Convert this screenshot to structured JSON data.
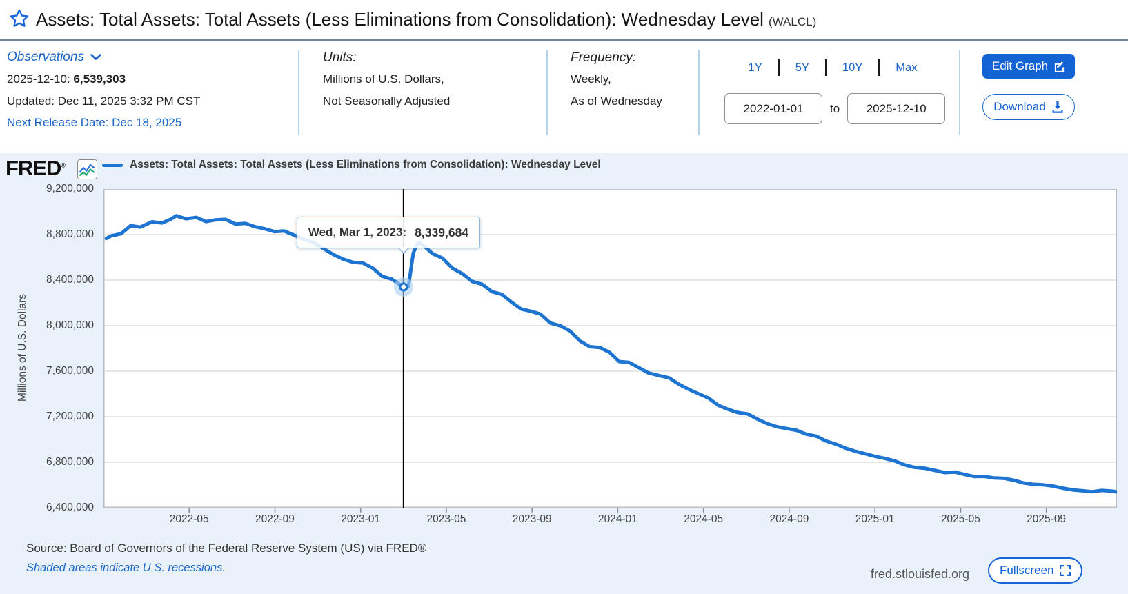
{
  "page": {
    "title": "Assets: Total Assets: Total Assets (Less Eliminations from Consolidation): Wednesday Level",
    "ticker": "(WALCL)"
  },
  "meta": {
    "observations": {
      "label": "Observations",
      "latest_date": "2025-12-10:",
      "latest_value": "6,539,303",
      "updated": "Updated: Dec 11, 2025 3:32 PM CST",
      "next_release": "Next Release Date: Dec 18, 2025"
    },
    "units": {
      "label": "Units:",
      "line1": "Millions of U.S. Dollars,",
      "line2": "Not Seasonally Adjusted"
    },
    "frequency": {
      "label": "Frequency:",
      "line1": "Weekly,",
      "line2": "As of Wednesday"
    },
    "range": {
      "presets": [
        "1Y",
        "5Y",
        "10Y",
        "Max"
      ],
      "start": "2022-01-01",
      "to_label": "to",
      "end": "2025-12-10"
    },
    "actions": {
      "edit": "Edit Graph",
      "download": "Download"
    }
  },
  "chart": {
    "logo": "FRED",
    "legend": "Assets: Total Assets: Total Assets (Less Eliminations from Consolidation): Wednesday Level",
    "tooltip": {
      "label": "Wed, Mar 1, 2023:",
      "value": "8,339,684"
    }
  },
  "footer": {
    "source": "Source: Board of Governors of the Federal Reserve System (US) via FRED®",
    "recessions": "Shaded areas indicate U.S. recessions.",
    "site": "fred.stlouisfed.org",
    "fullscreen": "Fullscreen"
  },
  "colors": {
    "link_blue": "#1a66c8",
    "button_blue": "#1463d2",
    "line_blue": "#1d74d1",
    "chart_bg": "#e9f1fa",
    "grid": "#cccccc",
    "plot_border": "#b4bac1",
    "crosshair": "#000000",
    "halo": "#a8cdf0",
    "tick": "#8a9099"
  },
  "chart_data": {
    "type": "line",
    "title": "Assets: Total Assets: Total Assets (Less Eliminations from Consolidation): Wednesday Level",
    "xlabel": "",
    "ylabel": "Millions of U.S. Dollars",
    "x_range": [
      "2022-01-01",
      "2025-12-10"
    ],
    "ylim": [
      6400000,
      9200000
    ],
    "y_ticks": [
      9200000,
      8800000,
      8400000,
      8000000,
      7600000,
      7200000,
      6800000,
      6400000
    ],
    "x_ticks": [
      "2022-05",
      "2022-09",
      "2023-01",
      "2023-05",
      "2023-09",
      "2024-01",
      "2024-05",
      "2024-09",
      "2025-01",
      "2025-05",
      "2025-09"
    ],
    "grid": true,
    "legend_position": "top",
    "highlight": {
      "date": "2023-03-01",
      "value": 8339684,
      "label": "Wed, Mar 1, 2023:",
      "value_text": "8,339,684"
    },
    "series": [
      {
        "name": "Assets: Total Assets: Total Assets (Less Eliminations from Consolidation): Wednesday Level",
        "color": "#1d74d1",
        "points": [
          [
            "2022-01-05",
            8765420
          ],
          [
            "2022-01-12",
            8789000
          ],
          [
            "2022-01-26",
            8807000
          ],
          [
            "2022-02-09",
            8878000
          ],
          [
            "2022-02-23",
            8866000
          ],
          [
            "2022-03-09",
            8912000
          ],
          [
            "2022-03-23",
            8902000
          ],
          [
            "2022-04-06",
            8937000
          ],
          [
            "2022-04-13",
            8965000
          ],
          [
            "2022-04-27",
            8939000
          ],
          [
            "2022-05-11",
            8951000
          ],
          [
            "2022-05-25",
            8914000
          ],
          [
            "2022-06-08",
            8929000
          ],
          [
            "2022-06-22",
            8934000
          ],
          [
            "2022-07-06",
            8892000
          ],
          [
            "2022-07-20",
            8898000
          ],
          [
            "2022-08-03",
            8869000
          ],
          [
            "2022-08-17",
            8851000
          ],
          [
            "2022-08-31",
            8826000
          ],
          [
            "2022-09-14",
            8832000
          ],
          [
            "2022-09-28",
            8796000
          ],
          [
            "2022-10-12",
            8757000
          ],
          [
            "2022-10-26",
            8729000
          ],
          [
            "2022-11-09",
            8677000
          ],
          [
            "2022-11-23",
            8625000
          ],
          [
            "2022-12-07",
            8583000
          ],
          [
            "2022-12-21",
            8556000
          ],
          [
            "2023-01-04",
            8551000
          ],
          [
            "2023-01-18",
            8506000
          ],
          [
            "2023-02-01",
            8434000
          ],
          [
            "2023-02-15",
            8408000
          ],
          [
            "2023-03-01",
            8339684
          ],
          [
            "2023-03-08",
            8342283
          ],
          [
            "2023-03-15",
            8639255
          ],
          [
            "2023-03-22",
            8733787
          ],
          [
            "2023-03-29",
            8705930
          ],
          [
            "2023-04-12",
            8632000
          ],
          [
            "2023-04-26",
            8593000
          ],
          [
            "2023-05-10",
            8503000
          ],
          [
            "2023-05-24",
            8456000
          ],
          [
            "2023-06-07",
            8389000
          ],
          [
            "2023-06-21",
            8365000
          ],
          [
            "2023-07-05",
            8298000
          ],
          [
            "2023-07-19",
            8275000
          ],
          [
            "2023-08-02",
            8207000
          ],
          [
            "2023-08-16",
            8146000
          ],
          [
            "2023-08-30",
            8126000
          ],
          [
            "2023-09-13",
            8101000
          ],
          [
            "2023-09-27",
            8023000
          ],
          [
            "2023-10-11",
            7998000
          ],
          [
            "2023-10-25",
            7951000
          ],
          [
            "2023-11-08",
            7866000
          ],
          [
            "2023-11-22",
            7815000
          ],
          [
            "2023-12-06",
            7808000
          ],
          [
            "2023-12-20",
            7764000
          ],
          [
            "2024-01-03",
            7684000
          ],
          [
            "2024-01-17",
            7677000
          ],
          [
            "2024-01-31",
            7631000
          ],
          [
            "2024-02-14",
            7585000
          ],
          [
            "2024-02-28",
            7563000
          ],
          [
            "2024-03-13",
            7541000
          ],
          [
            "2024-03-27",
            7485000
          ],
          [
            "2024-04-10",
            7442000
          ],
          [
            "2024-04-24",
            7403000
          ],
          [
            "2024-05-08",
            7364000
          ],
          [
            "2024-05-22",
            7300000
          ],
          [
            "2024-06-05",
            7266000
          ],
          [
            "2024-06-19",
            7237000
          ],
          [
            "2024-07-03",
            7224000
          ],
          [
            "2024-07-17",
            7178000
          ],
          [
            "2024-07-31",
            7139000
          ],
          [
            "2024-08-14",
            7112000
          ],
          [
            "2024-08-28",
            7096000
          ],
          [
            "2024-09-11",
            7081000
          ],
          [
            "2024-09-25",
            7047000
          ],
          [
            "2024-10-09",
            7029000
          ],
          [
            "2024-10-23",
            6986000
          ],
          [
            "2024-11-06",
            6960000
          ],
          [
            "2024-11-20",
            6924000
          ],
          [
            "2024-12-04",
            6896000
          ],
          [
            "2024-12-18",
            6874000
          ],
          [
            "2025-01-01",
            6852000
          ],
          [
            "2025-01-15",
            6834000
          ],
          [
            "2025-01-29",
            6812000
          ],
          [
            "2025-02-12",
            6778000
          ],
          [
            "2025-02-26",
            6756000
          ],
          [
            "2025-03-12",
            6746000
          ],
          [
            "2025-03-26",
            6727000
          ],
          [
            "2025-04-09",
            6709000
          ],
          [
            "2025-04-23",
            6714000
          ],
          [
            "2025-05-07",
            6692000
          ],
          [
            "2025-05-21",
            6674000
          ],
          [
            "2025-06-04",
            6676000
          ],
          [
            "2025-06-18",
            6662000
          ],
          [
            "2025-07-02",
            6658000
          ],
          [
            "2025-07-16",
            6641000
          ],
          [
            "2025-07-30",
            6617000
          ],
          [
            "2025-08-13",
            6606000
          ],
          [
            "2025-08-27",
            6601000
          ],
          [
            "2025-09-10",
            6591000
          ],
          [
            "2025-09-24",
            6573000
          ],
          [
            "2025-10-08",
            6557000
          ],
          [
            "2025-10-22",
            6549000
          ],
          [
            "2025-11-05",
            6541000
          ],
          [
            "2025-11-19",
            6552000
          ],
          [
            "2025-12-03",
            6546000
          ],
          [
            "2025-12-10",
            6539303
          ]
        ]
      }
    ]
  }
}
